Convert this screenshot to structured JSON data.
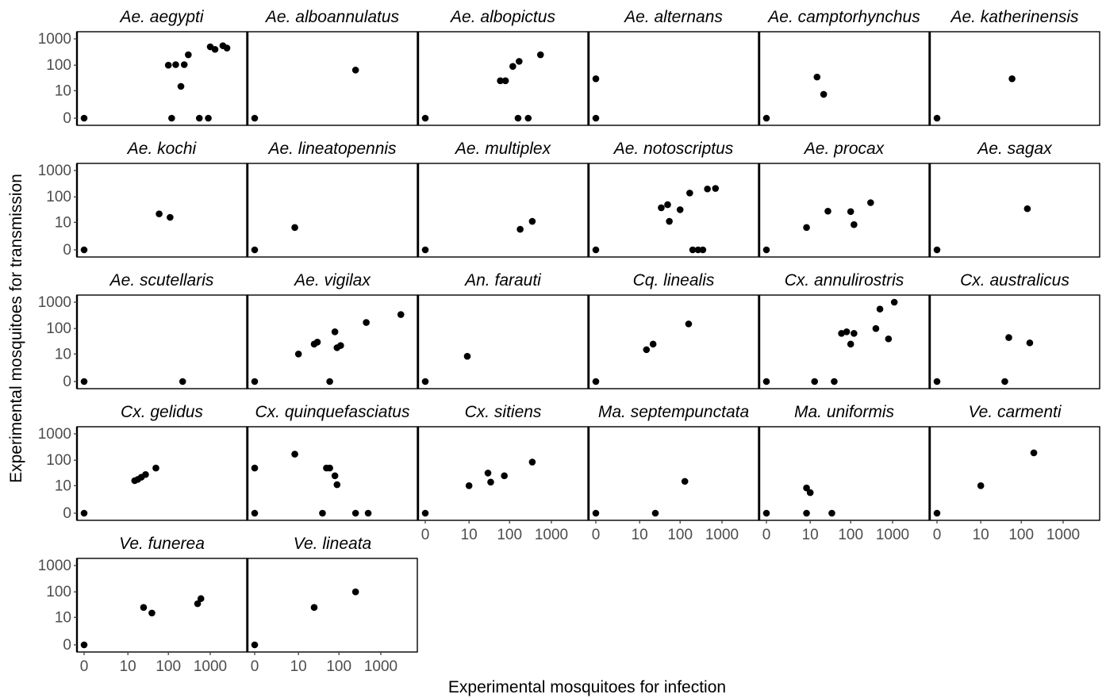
{
  "chart_data": {
    "type": "scatter",
    "title": "",
    "xlabel": "Experimental mosquitoes for infection",
    "ylabel": "Experimental mosquitoes for transmission",
    "scale": "pseudo-log (0, 10, 100, 1000)",
    "x_ticks": [
      "0",
      "10",
      "100",
      "1000"
    ],
    "y_ticks": [
      "0",
      "10",
      "100",
      "1000"
    ],
    "xlim": [
      0,
      5000
    ],
    "ylim": [
      0,
      1000
    ],
    "grid": false,
    "legend": "none",
    "point_color": "#000000",
    "panels": [
      {
        "name": "Ae. aegypti",
        "points": [
          [
            0,
            0
          ],
          [
            100,
            100
          ],
          [
            120,
            0
          ],
          [
            150,
            105
          ],
          [
            200,
            15
          ],
          [
            240,
            105
          ],
          [
            300,
            250
          ],
          [
            550,
            0
          ],
          [
            900,
            0
          ],
          [
            1000,
            500
          ],
          [
            1300,
            400
          ],
          [
            2000,
            550
          ],
          [
            2500,
            450
          ]
        ]
      },
      {
        "name": "Ae. alboannulatus",
        "points": [
          [
            0,
            0
          ],
          [
            250,
            65
          ]
        ]
      },
      {
        "name": "Ae. albopictus",
        "points": [
          [
            0,
            0
          ],
          [
            60,
            25
          ],
          [
            80,
            25
          ],
          [
            120,
            90
          ],
          [
            160,
            0
          ],
          [
            170,
            140
          ],
          [
            280,
            0
          ],
          [
            550,
            250
          ]
        ]
      },
      {
        "name": "Ae. alternans",
        "points": [
          [
            0,
            0
          ],
          [
            0,
            30
          ]
        ]
      },
      {
        "name": "Ae. camptorhynchus",
        "points": [
          [
            0,
            0
          ],
          [
            15,
            35
          ],
          [
            22,
            7
          ]
        ]
      },
      {
        "name": "Ae. katherinensis",
        "points": [
          [
            0,
            0
          ],
          [
            60,
            30
          ]
        ]
      },
      {
        "name": "Ae. kochi",
        "points": [
          [
            0,
            0
          ],
          [
            60,
            22
          ],
          [
            110,
            16
          ]
        ]
      },
      {
        "name": "Ae. lineatopennis",
        "points": [
          [
            0,
            0
          ],
          [
            8,
            6
          ]
        ]
      },
      {
        "name": "Ae. multiplex",
        "points": [
          [
            0,
            0
          ],
          [
            180,
            5
          ],
          [
            350,
            11
          ]
        ]
      },
      {
        "name": "Ae. notoscriptus",
        "points": [
          [
            0,
            0
          ],
          [
            35,
            38
          ],
          [
            50,
            50
          ],
          [
            55,
            11
          ],
          [
            100,
            32
          ],
          [
            170,
            140
          ],
          [
            200,
            0
          ],
          [
            270,
            0
          ],
          [
            350,
            0
          ],
          [
            450,
            200
          ],
          [
            700,
            210
          ]
        ]
      },
      {
        "name": "Ae. procax",
        "points": [
          [
            0,
            0
          ],
          [
            8,
            6
          ],
          [
            28,
            28
          ],
          [
            100,
            27
          ],
          [
            120,
            8
          ],
          [
            300,
            60
          ]
        ]
      },
      {
        "name": "Ae. sagax",
        "points": [
          [
            0,
            0
          ],
          [
            140,
            35
          ]
        ]
      },
      {
        "name": "Ae. scutellaris",
        "points": [
          [
            0,
            0
          ],
          [
            220,
            0
          ]
        ]
      },
      {
        "name": "Ae. vigilax",
        "points": [
          [
            0,
            0
          ],
          [
            10,
            10
          ],
          [
            25,
            25
          ],
          [
            30,
            30
          ],
          [
            60,
            0
          ],
          [
            80,
            75
          ],
          [
            90,
            18
          ],
          [
            110,
            22
          ],
          [
            450,
            170
          ],
          [
            3000,
            340
          ]
        ]
      },
      {
        "name": "An. farauti",
        "points": [
          [
            0,
            0
          ],
          [
            9,
            8
          ]
        ]
      },
      {
        "name": "Cq. linealis",
        "points": [
          [
            0,
            0
          ],
          [
            15,
            15
          ],
          [
            22,
            25
          ],
          [
            160,
            150
          ]
        ]
      },
      {
        "name": "Cx. annulirostris",
        "points": [
          [
            0,
            0
          ],
          [
            13,
            0
          ],
          [
            40,
            0
          ],
          [
            60,
            65
          ],
          [
            80,
            75
          ],
          [
            100,
            25
          ],
          [
            120,
            65
          ],
          [
            400,
            100
          ],
          [
            500,
            550
          ],
          [
            800,
            40
          ],
          [
            1100,
            1000
          ]
        ]
      },
      {
        "name": "Cx. australicus",
        "points": [
          [
            0,
            0
          ],
          [
            40,
            0
          ],
          [
            50,
            45
          ],
          [
            160,
            28
          ]
        ]
      },
      {
        "name": "Cx. gelidus",
        "points": [
          [
            0,
            0
          ],
          [
            15,
            16
          ],
          [
            18,
            18
          ],
          [
            22,
            22
          ],
          [
            28,
            28
          ],
          [
            50,
            50
          ]
        ]
      },
      {
        "name": "Cx. quinquefasciatus",
        "points": [
          [
            0,
            0
          ],
          [
            0,
            50
          ],
          [
            8,
            170
          ],
          [
            40,
            0
          ],
          [
            50,
            50
          ],
          [
            60,
            50
          ],
          [
            80,
            25
          ],
          [
            90,
            11
          ],
          [
            250,
            0
          ],
          [
            500,
            0
          ]
        ]
      },
      {
        "name": "Cx. sitiens",
        "points": [
          [
            0,
            0
          ],
          [
            10,
            10
          ],
          [
            30,
            32
          ],
          [
            35,
            14
          ],
          [
            75,
            25
          ],
          [
            350,
            85
          ]
        ]
      },
      {
        "name": "Ma. septempunctata",
        "points": [
          [
            0,
            0
          ],
          [
            25,
            0
          ],
          [
            130,
            15
          ]
        ]
      },
      {
        "name": "Ma. uniformis",
        "points": [
          [
            0,
            0
          ],
          [
            8,
            0
          ],
          [
            8,
            8
          ],
          [
            10,
            5
          ],
          [
            35,
            0
          ]
        ]
      },
      {
        "name": "Ve. carmenti",
        "points": [
          [
            0,
            0
          ],
          [
            10,
            10
          ],
          [
            200,
            190
          ]
        ]
      },
      {
        "name": "Ve. funerea",
        "points": [
          [
            0,
            0
          ],
          [
            25,
            25
          ],
          [
            40,
            15
          ],
          [
            500,
            35
          ],
          [
            600,
            55
          ]
        ]
      },
      {
        "name": "Ve. lineata",
        "points": [
          [
            0,
            0
          ],
          [
            25,
            25
          ],
          [
            250,
            100
          ]
        ]
      }
    ]
  }
}
